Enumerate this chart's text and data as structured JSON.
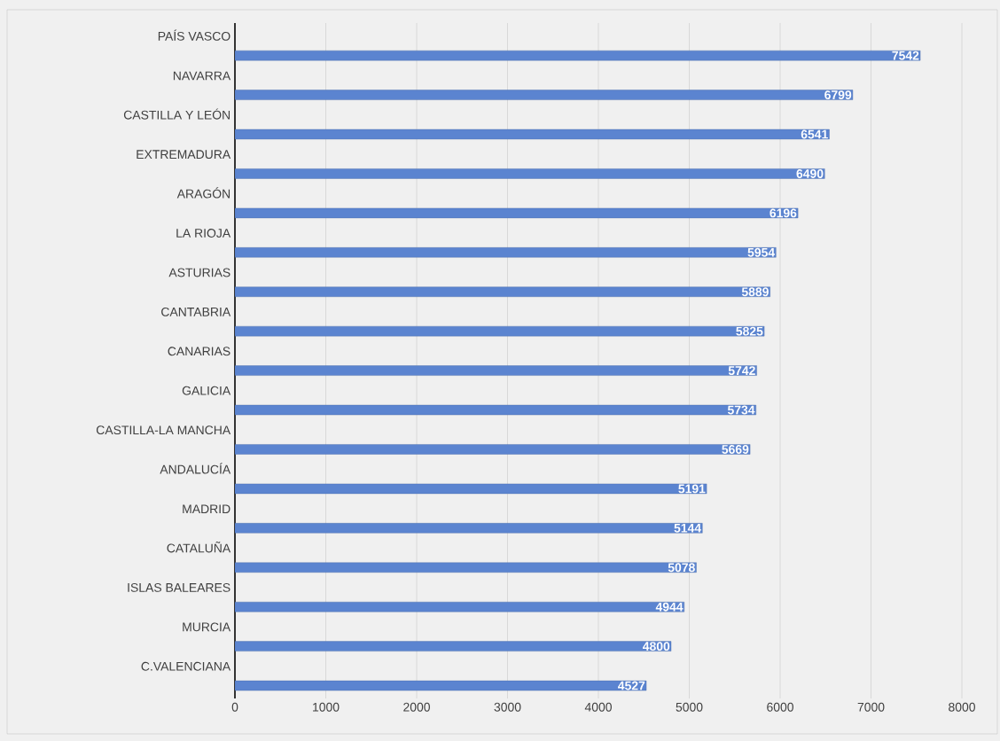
{
  "chart_data": {
    "type": "bar",
    "orientation": "horizontal",
    "categories": [
      "PAÍS VASCO",
      "NAVARRA",
      "CASTILLA Y LEÓN",
      "EXTREMADURA",
      "ARAGÓN",
      "LA RIOJA",
      "ASTURIAS",
      "CANTABRIA",
      "CANARIAS",
      "GALICIA",
      "CASTILLA-LA MANCHA",
      "ANDALUCÍA",
      "MADRID",
      "CATALUÑA",
      "ISLAS BALEARES",
      "MURCIA",
      "C.VALENCIANA"
    ],
    "values": [
      7542,
      6799,
      6541,
      6490,
      6196,
      5954,
      5889,
      5825,
      5742,
      5734,
      5669,
      5191,
      5144,
      5078,
      4944,
      4800,
      4527
    ],
    "color": "#5b84d0",
    "xlim": [
      0,
      8000
    ],
    "xticks": [
      0,
      1000,
      2000,
      3000,
      4000,
      5000,
      6000,
      7000,
      8000
    ],
    "grid": "x",
    "data_labels": true
  }
}
